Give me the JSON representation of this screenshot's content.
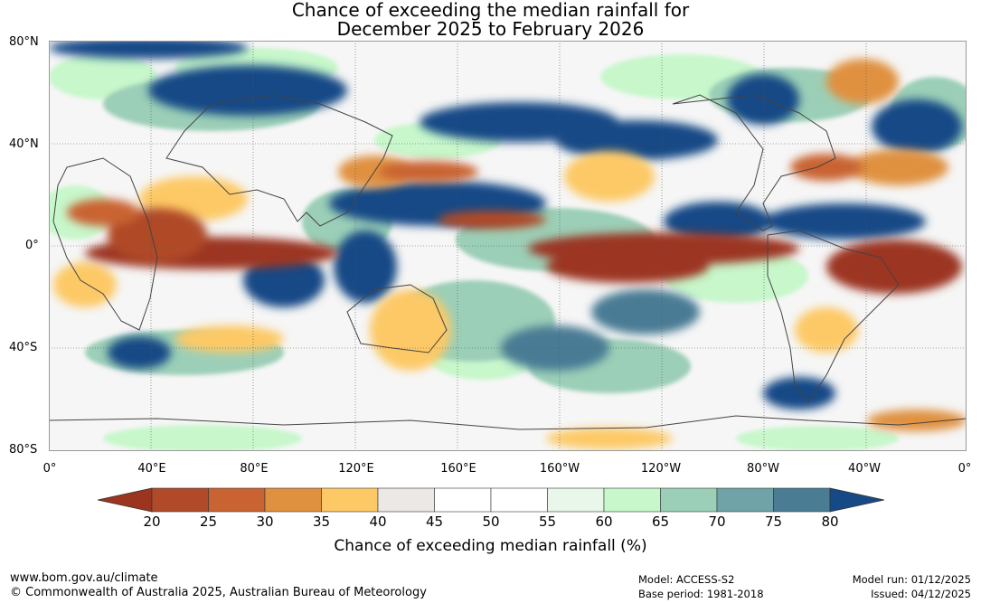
{
  "title_line1": "Chance of exceeding the median rainfall for",
  "title_line2": "December 2025 to February 2026",
  "lat_labels": [
    "80°N",
    "40°N",
    "0°",
    "40°S",
    "80°S"
  ],
  "lon_labels": [
    "0°",
    "40°E",
    "80°E",
    "120°E",
    "160°E",
    "160°W",
    "120°W",
    "80°W",
    "40°W",
    "0°"
  ],
  "colorbar": {
    "ticks": [
      "20",
      "25",
      "30",
      "35",
      "40",
      "45",
      "50",
      "55",
      "60",
      "65",
      "70",
      "75",
      "80"
    ],
    "colors": [
      "#9c3520",
      "#b04a28",
      "#c96432",
      "#e0913f",
      "#fdc966",
      "#ebe8e6",
      "#ffffff",
      "#ffffff",
      "#e9f6ea",
      "#c7f7cb",
      "#9ccfb7",
      "#6fa3a8",
      "#4a7c94",
      "#164a86"
    ],
    "label": "Chance of exceeding median rainfall (%)"
  },
  "footer": {
    "url": "www.bom.gov.au/climate",
    "copyright": "© Commonwealth of Australia 2025, Australian Bureau of Meteorology",
    "model": "Model: ACCESS-S2",
    "base_period": "Base period: 1981-2018",
    "model_run": "Model run: 01/12/2025",
    "issued": "Issued: 04/12/2025"
  }
}
